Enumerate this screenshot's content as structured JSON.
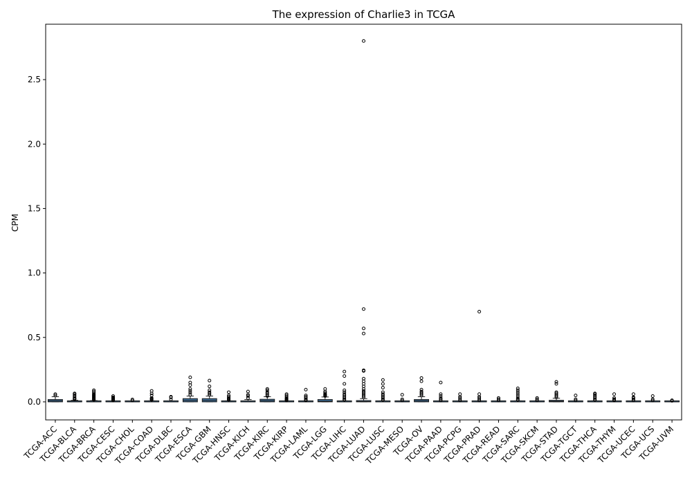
{
  "chart_data": {
    "type": "box",
    "title": "The expression of Charlie3 in TCGA",
    "xlabel": "",
    "ylabel": "CPM",
    "ylim": [
      -0.14,
      2.93
    ],
    "yticks": [
      0.0,
      0.5,
      1.0,
      1.5,
      2.0,
      2.5
    ],
    "ytick_labels": [
      "0.0",
      "0.5",
      "1.0",
      "1.5",
      "2.0",
      "2.5"
    ],
    "grid": false,
    "legend": "none",
    "colors": {
      "box": "#3d6f9b",
      "edge": "#1a1a1a",
      "median": "#1a1a1a"
    },
    "categories": [
      "TCGA-ACC",
      "TCGA-BLCA",
      "TCGA-BRCA",
      "TCGA-CESC",
      "TCGA-CHOL",
      "TCGA-COAD",
      "TCGA-DLBC",
      "TCGA-ESCA",
      "TCGA-GBM",
      "TCGA-HNSC",
      "TCGA-KICH",
      "TCGA-KIRC",
      "TCGA-KIRP",
      "TCGA-LAML",
      "TCGA-LGG",
      "TCGA-LIHC",
      "TCGA-LUAD",
      "TCGA-LUSC",
      "TCGA-MESO",
      "TCGA-OV",
      "TCGA-PAAD",
      "TCGA-PCPG",
      "TCGA-PRAD",
      "TCGA-READ",
      "TCGA-SARC",
      "TCGA-SKCM",
      "TCGA-STAD",
      "TCGA-TGCT",
      "TCGA-THCA",
      "TCGA-THYM",
      "TCGA-UCEC",
      "TCGA-UCS",
      "TCGA-UVM"
    ],
    "boxes": [
      {
        "q1": 0.0,
        "median": 0.008,
        "q3": 0.018,
        "whislo": 0.0,
        "whishi": 0.04,
        "fliers": [
          0.05,
          0.06
        ]
      },
      {
        "q1": 0.0,
        "median": 0.0,
        "q3": 0.005,
        "whislo": 0.0,
        "whishi": 0.012,
        "fliers": [
          0.02,
          0.025,
          0.03,
          0.04,
          0.05,
          0.06,
          0.065
        ]
      },
      {
        "q1": 0.0,
        "median": 0.0,
        "q3": 0.004,
        "whislo": 0.0,
        "whishi": 0.01,
        "fliers": [
          0.015,
          0.02,
          0.025,
          0.03,
          0.035,
          0.04,
          0.045,
          0.05,
          0.055,
          0.06,
          0.07,
          0.08,
          0.09
        ]
      },
      {
        "q1": 0.0,
        "median": 0.0,
        "q3": 0.002,
        "whislo": 0.0,
        "whishi": 0.005,
        "fliers": [
          0.01,
          0.015,
          0.02,
          0.025,
          0.03,
          0.035,
          0.045
        ]
      },
      {
        "q1": 0.0,
        "median": 0.0,
        "q3": 0.002,
        "whislo": 0.0,
        "whishi": 0.004,
        "fliers": [
          0.01,
          0.018
        ]
      },
      {
        "q1": 0.0,
        "median": 0.0,
        "q3": 0.003,
        "whislo": 0.0,
        "whishi": 0.008,
        "fliers": [
          0.015,
          0.02,
          0.025,
          0.03,
          0.05,
          0.065,
          0.085
        ]
      },
      {
        "q1": 0.0,
        "median": 0.0,
        "q3": 0.002,
        "whislo": 0.0,
        "whishi": 0.005,
        "fliers": [
          0.02,
          0.035,
          0.04
        ]
      },
      {
        "q1": 0.0,
        "median": 0.01,
        "q3": 0.025,
        "whislo": 0.0,
        "whishi": 0.045,
        "fliers": [
          0.055,
          0.07,
          0.085,
          0.1,
          0.13,
          0.15,
          0.19
        ]
      },
      {
        "q1": 0.0,
        "median": 0.01,
        "q3": 0.025,
        "whislo": 0.0,
        "whishi": 0.045,
        "fliers": [
          0.055,
          0.065,
          0.075,
          0.09,
          0.12,
          0.165
        ]
      },
      {
        "q1": 0.0,
        "median": 0.0,
        "q3": 0.003,
        "whislo": 0.0,
        "whishi": 0.008,
        "fliers": [
          0.015,
          0.02,
          0.025,
          0.03,
          0.04,
          0.05,
          0.075
        ]
      },
      {
        "q1": 0.0,
        "median": 0.0,
        "q3": 0.008,
        "whislo": 0.0,
        "whishi": 0.018,
        "fliers": [
          0.03,
          0.045,
          0.055,
          0.08
        ]
      },
      {
        "q1": 0.0,
        "median": 0.008,
        "q3": 0.02,
        "whislo": 0.0,
        "whishi": 0.04,
        "fliers": [
          0.045,
          0.055,
          0.065,
          0.075,
          0.09,
          0.1
        ]
      },
      {
        "q1": 0.0,
        "median": 0.0,
        "q3": 0.002,
        "whislo": 0.0,
        "whishi": 0.005,
        "fliers": [
          0.01,
          0.015,
          0.02,
          0.025,
          0.03,
          0.04,
          0.05,
          0.06
        ]
      },
      {
        "q1": 0.0,
        "median": 0.0,
        "q3": 0.002,
        "whislo": 0.0,
        "whishi": 0.005,
        "fliers": [
          0.01,
          0.015,
          0.02,
          0.03,
          0.04,
          0.05,
          0.095
        ]
      },
      {
        "q1": 0.0,
        "median": 0.005,
        "q3": 0.018,
        "whislo": 0.0,
        "whishi": 0.038,
        "fliers": [
          0.045,
          0.05,
          0.055,
          0.06,
          0.07,
          0.08,
          0.1
        ]
      },
      {
        "q1": 0.0,
        "median": 0.0,
        "q3": 0.003,
        "whislo": 0.0,
        "whishi": 0.008,
        "fliers": [
          0.015,
          0.02,
          0.03,
          0.04,
          0.05,
          0.06,
          0.075,
          0.09,
          0.14,
          0.2,
          0.235
        ]
      },
      {
        "q1": 0.0,
        "median": 0.003,
        "q3": 0.01,
        "whislo": 0.0,
        "whishi": 0.025,
        "fliers": [
          0.035,
          0.045,
          0.055,
          0.065,
          0.075,
          0.085,
          0.1,
          0.12,
          0.14,
          0.16,
          0.18,
          0.24,
          0.245,
          0.53,
          0.57,
          0.72,
          2.8
        ]
      },
      {
        "q1": 0.0,
        "median": 0.0,
        "q3": 0.003,
        "whislo": 0.0,
        "whishi": 0.008,
        "fliers": [
          0.015,
          0.02,
          0.03,
          0.04,
          0.05,
          0.06,
          0.075,
          0.11,
          0.14,
          0.17
        ]
      },
      {
        "q1": 0.0,
        "median": 0.0,
        "q3": 0.002,
        "whislo": 0.0,
        "whishi": 0.004,
        "fliers": [
          0.01,
          0.02,
          0.055
        ]
      },
      {
        "q1": 0.0,
        "median": 0.008,
        "q3": 0.018,
        "whislo": 0.0,
        "whishi": 0.04,
        "fliers": [
          0.05,
          0.06,
          0.07,
          0.08,
          0.095,
          0.16,
          0.185
        ]
      },
      {
        "q1": 0.0,
        "median": 0.0,
        "q3": 0.002,
        "whislo": 0.0,
        "whishi": 0.005,
        "fliers": [
          0.01,
          0.02,
          0.03,
          0.045,
          0.06,
          0.15
        ]
      },
      {
        "q1": 0.0,
        "median": 0.0,
        "q3": 0.002,
        "whislo": 0.0,
        "whishi": 0.005,
        "fliers": [
          0.01,
          0.02,
          0.03,
          0.04,
          0.06
        ]
      },
      {
        "q1": 0.0,
        "median": 0.0,
        "q3": 0.002,
        "whislo": 0.0,
        "whishi": 0.005,
        "fliers": [
          0.01,
          0.02,
          0.03,
          0.04,
          0.06,
          0.7
        ]
      },
      {
        "q1": 0.0,
        "median": 0.0,
        "q3": 0.001,
        "whislo": 0.0,
        "whishi": 0.003,
        "fliers": [
          0.01,
          0.02,
          0.03
        ]
      },
      {
        "q1": 0.0,
        "median": 0.0,
        "q3": 0.003,
        "whislo": 0.0,
        "whishi": 0.008,
        "fliers": [
          0.015,
          0.02,
          0.03,
          0.045,
          0.06,
          0.075,
          0.09,
          0.105
        ]
      },
      {
        "q1": 0.0,
        "median": 0.0,
        "q3": 0.002,
        "whislo": 0.0,
        "whishi": 0.004,
        "fliers": [
          0.01,
          0.02,
          0.03
        ]
      },
      {
        "q1": 0.0,
        "median": 0.005,
        "q3": 0.012,
        "whislo": 0.0,
        "whishi": 0.028,
        "fliers": [
          0.035,
          0.045,
          0.055,
          0.065,
          0.075,
          0.14,
          0.155
        ]
      },
      {
        "q1": 0.0,
        "median": 0.0,
        "q3": 0.002,
        "whislo": 0.0,
        "whishi": 0.005,
        "fliers": [
          0.01,
          0.02,
          0.05
        ]
      },
      {
        "q1": 0.0,
        "median": 0.0,
        "q3": 0.003,
        "whislo": 0.0,
        "whishi": 0.008,
        "fliers": [
          0.015,
          0.02,
          0.03,
          0.04,
          0.05,
          0.06,
          0.065
        ]
      },
      {
        "q1": 0.0,
        "median": 0.0,
        "q3": 0.002,
        "whislo": 0.0,
        "whishi": 0.005,
        "fliers": [
          0.01,
          0.015,
          0.02,
          0.03,
          0.06
        ]
      },
      {
        "q1": 0.0,
        "median": 0.0,
        "q3": 0.002,
        "whislo": 0.0,
        "whishi": 0.005,
        "fliers": [
          0.01,
          0.02,
          0.03,
          0.035,
          0.06
        ]
      },
      {
        "q1": 0.0,
        "median": 0.0,
        "q3": 0.001,
        "whislo": 0.0,
        "whishi": 0.003,
        "fliers": [
          0.01,
          0.02,
          0.045
        ]
      },
      {
        "q1": 0.0,
        "median": 0.0,
        "q3": 0.001,
        "whislo": 0.0,
        "whishi": 0.003,
        "fliers": [
          0.008,
          0.012
        ]
      }
    ]
  }
}
